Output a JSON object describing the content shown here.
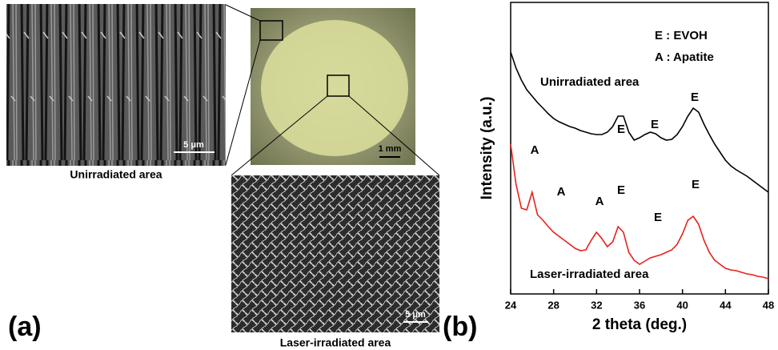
{
  "figure_a": {
    "panel_label": "(a)",
    "unirradiated_caption": "Unirradiated area",
    "laser_caption": "Laser-irradiated area",
    "sem_scale_top": "5 μm",
    "optical_scale": "1 mm",
    "sem_scale_bottom": "5 μm"
  },
  "chart_data": {
    "type": "line",
    "panel_label": "(b)",
    "x_label": "2 theta (deg.)",
    "y_label": "Intensity (a.u.)",
    "xlim": [
      24,
      48
    ],
    "xticks": [
      24,
      28,
      32,
      36,
      40,
      44,
      48
    ],
    "ylim": [
      0,
      364
    ],
    "annotations": [
      "E : EVOH",
      "A : Apatite",
      "Unirradiated area",
      "E",
      "E",
      "E",
      "A",
      "A",
      "A",
      "E",
      "E",
      "E",
      "Laser-irradiated area"
    ],
    "x": [
      24,
      24.5,
      25,
      25.5,
      26,
      26.5,
      27,
      27.5,
      28,
      28.5,
      29,
      29.5,
      30,
      30.5,
      31,
      31.5,
      32,
      32.5,
      33,
      33.5,
      34,
      34.5,
      35,
      35.5,
      36,
      36.5,
      37,
      37.5,
      38,
      38.5,
      39,
      39.5,
      40,
      40.5,
      41,
      41.5,
      42,
      42.5,
      43,
      43.5,
      44,
      44.5,
      45,
      45.5,
      46,
      46.5,
      47,
      47.5,
      48
    ],
    "series": [
      {
        "name": "Unirradiated area",
        "color": "#000000",
        "values": [
          302,
          282,
          267,
          255,
          247,
          239,
          232,
          225,
          219,
          215,
          212,
          209,
          207,
          204,
          202,
          200,
          199,
          199,
          202,
          209,
          222,
          222,
          202,
          192,
          195,
          199,
          202,
          200,
          195,
          192,
          193,
          199,
          209,
          222,
          232,
          227,
          212,
          199,
          187,
          177,
          167,
          160,
          155,
          151,
          147,
          142,
          137,
          132,
          127
        ]
      },
      {
        "name": "Laser-irradiated area",
        "color": "#e8201c",
        "values": [
          187,
          137,
          107,
          105,
          127,
          99,
          92,
          84,
          77,
          72,
          67,
          62,
          57,
          54,
          55,
          67,
          77,
          69,
          59,
          65,
          84,
          77,
          52,
          42,
          37,
          41,
          45,
          47,
          49,
          52,
          55,
          62,
          75,
          92,
          97,
          87,
          67,
          52,
          42,
          37,
          32,
          30,
          29,
          27,
          25,
          24,
          22,
          21,
          19
        ]
      }
    ]
  }
}
